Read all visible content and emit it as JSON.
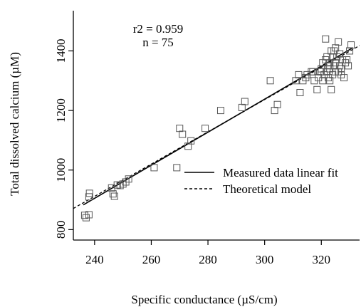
{
  "chart_data": {
    "type": "scatter",
    "title": "",
    "xlabel": "Specific conductance (µS/cm)",
    "ylabel": "Total dissolved calcium (µM)",
    "xlim": [
      232.5,
      333.5
    ],
    "ylim": [
      765,
      1535
    ],
    "xticks": [
      240,
      260,
      280,
      300,
      320
    ],
    "yticks": [
      800,
      1000,
      1200,
      1400
    ],
    "grid": false,
    "legend_position": "center-right",
    "annotations": [
      "r2 = 0.959",
      "n = 75"
    ],
    "legend": [
      {
        "label": "Measured data linear fit",
        "style": "solid"
      },
      {
        "label": "Theoretical model",
        "style": "dashed"
      }
    ],
    "series": [
      {
        "name": "",
        "marker": "open-square",
        "points": [
          [
            236.5,
            848
          ],
          [
            237.0,
            840
          ],
          [
            238.0,
            850
          ],
          [
            238.0,
            910
          ],
          [
            238.2,
            922
          ],
          [
            246.0,
            940
          ],
          [
            246.5,
            920
          ],
          [
            247.0,
            912
          ],
          [
            248.0,
            950
          ],
          [
            249.0,
            948
          ],
          [
            250.0,
            953
          ],
          [
            251.0,
            960
          ],
          [
            252.0,
            970
          ],
          [
            261.0,
            1008
          ],
          [
            269.0,
            1008
          ],
          [
            270.0,
            1140
          ],
          [
            271.0,
            1120
          ],
          [
            273.0,
            1080
          ],
          [
            274.0,
            1098
          ],
          [
            279.0,
            1140
          ],
          [
            284.5,
            1200
          ],
          [
            292.0,
            1210
          ],
          [
            293.0,
            1230
          ],
          [
            302.0,
            1300
          ],
          [
            303.5,
            1200
          ],
          [
            304.5,
            1220
          ],
          [
            311.0,
            1300
          ],
          [
            312.0,
            1320
          ],
          [
            312.5,
            1260
          ],
          [
            313.5,
            1300
          ],
          [
            314.5,
            1310
          ],
          [
            315.0,
            1320
          ],
          [
            316.5,
            1330
          ],
          [
            317.0,
            1330
          ],
          [
            317.5,
            1300
          ],
          [
            318.5,
            1270
          ],
          [
            319.0,
            1310
          ],
          [
            319.5,
            1330
          ],
          [
            320.0,
            1330
          ],
          [
            320.0,
            1340
          ],
          [
            320.5,
            1360
          ],
          [
            320.5,
            1300
          ],
          [
            321.0,
            1320
          ],
          [
            321.5,
            1370
          ],
          [
            321.5,
            1440
          ],
          [
            322.0,
            1380
          ],
          [
            322.0,
            1330
          ],
          [
            322.5,
            1350
          ],
          [
            322.5,
            1310
          ],
          [
            323.0,
            1340
          ],
          [
            323.0,
            1300
          ],
          [
            323.5,
            1400
          ],
          [
            323.5,
            1270
          ],
          [
            324.0,
            1380
          ],
          [
            324.0,
            1320
          ],
          [
            324.5,
            1400
          ],
          [
            324.5,
            1350
          ],
          [
            325.0,
            1360
          ],
          [
            325.0,
            1330
          ],
          [
            325.0,
            1410
          ],
          [
            325.5,
            1380
          ],
          [
            326.0,
            1430
          ],
          [
            326.0,
            1330
          ],
          [
            326.5,
            1390
          ],
          [
            326.5,
            1350
          ],
          [
            327.0,
            1340
          ],
          [
            327.0,
            1320
          ],
          [
            327.5,
            1370
          ],
          [
            328.0,
            1310
          ],
          [
            328.5,
            1360
          ],
          [
            329.0,
            1370
          ],
          [
            329.5,
            1350
          ],
          [
            330.0,
            1400
          ],
          [
            330.5,
            1420
          ],
          [
            323.0,
            1360
          ]
        ]
      }
    ],
    "lines": [
      {
        "name": "Measured data linear fit",
        "style": "solid",
        "x": [
          236,
          331
        ],
        "y": [
          883,
          1410
        ]
      },
      {
        "name": "Theoretical model",
        "style": "dashed",
        "x": [
          232.5,
          333.5
        ],
        "y": [
          871,
          1418
        ]
      }
    ]
  }
}
